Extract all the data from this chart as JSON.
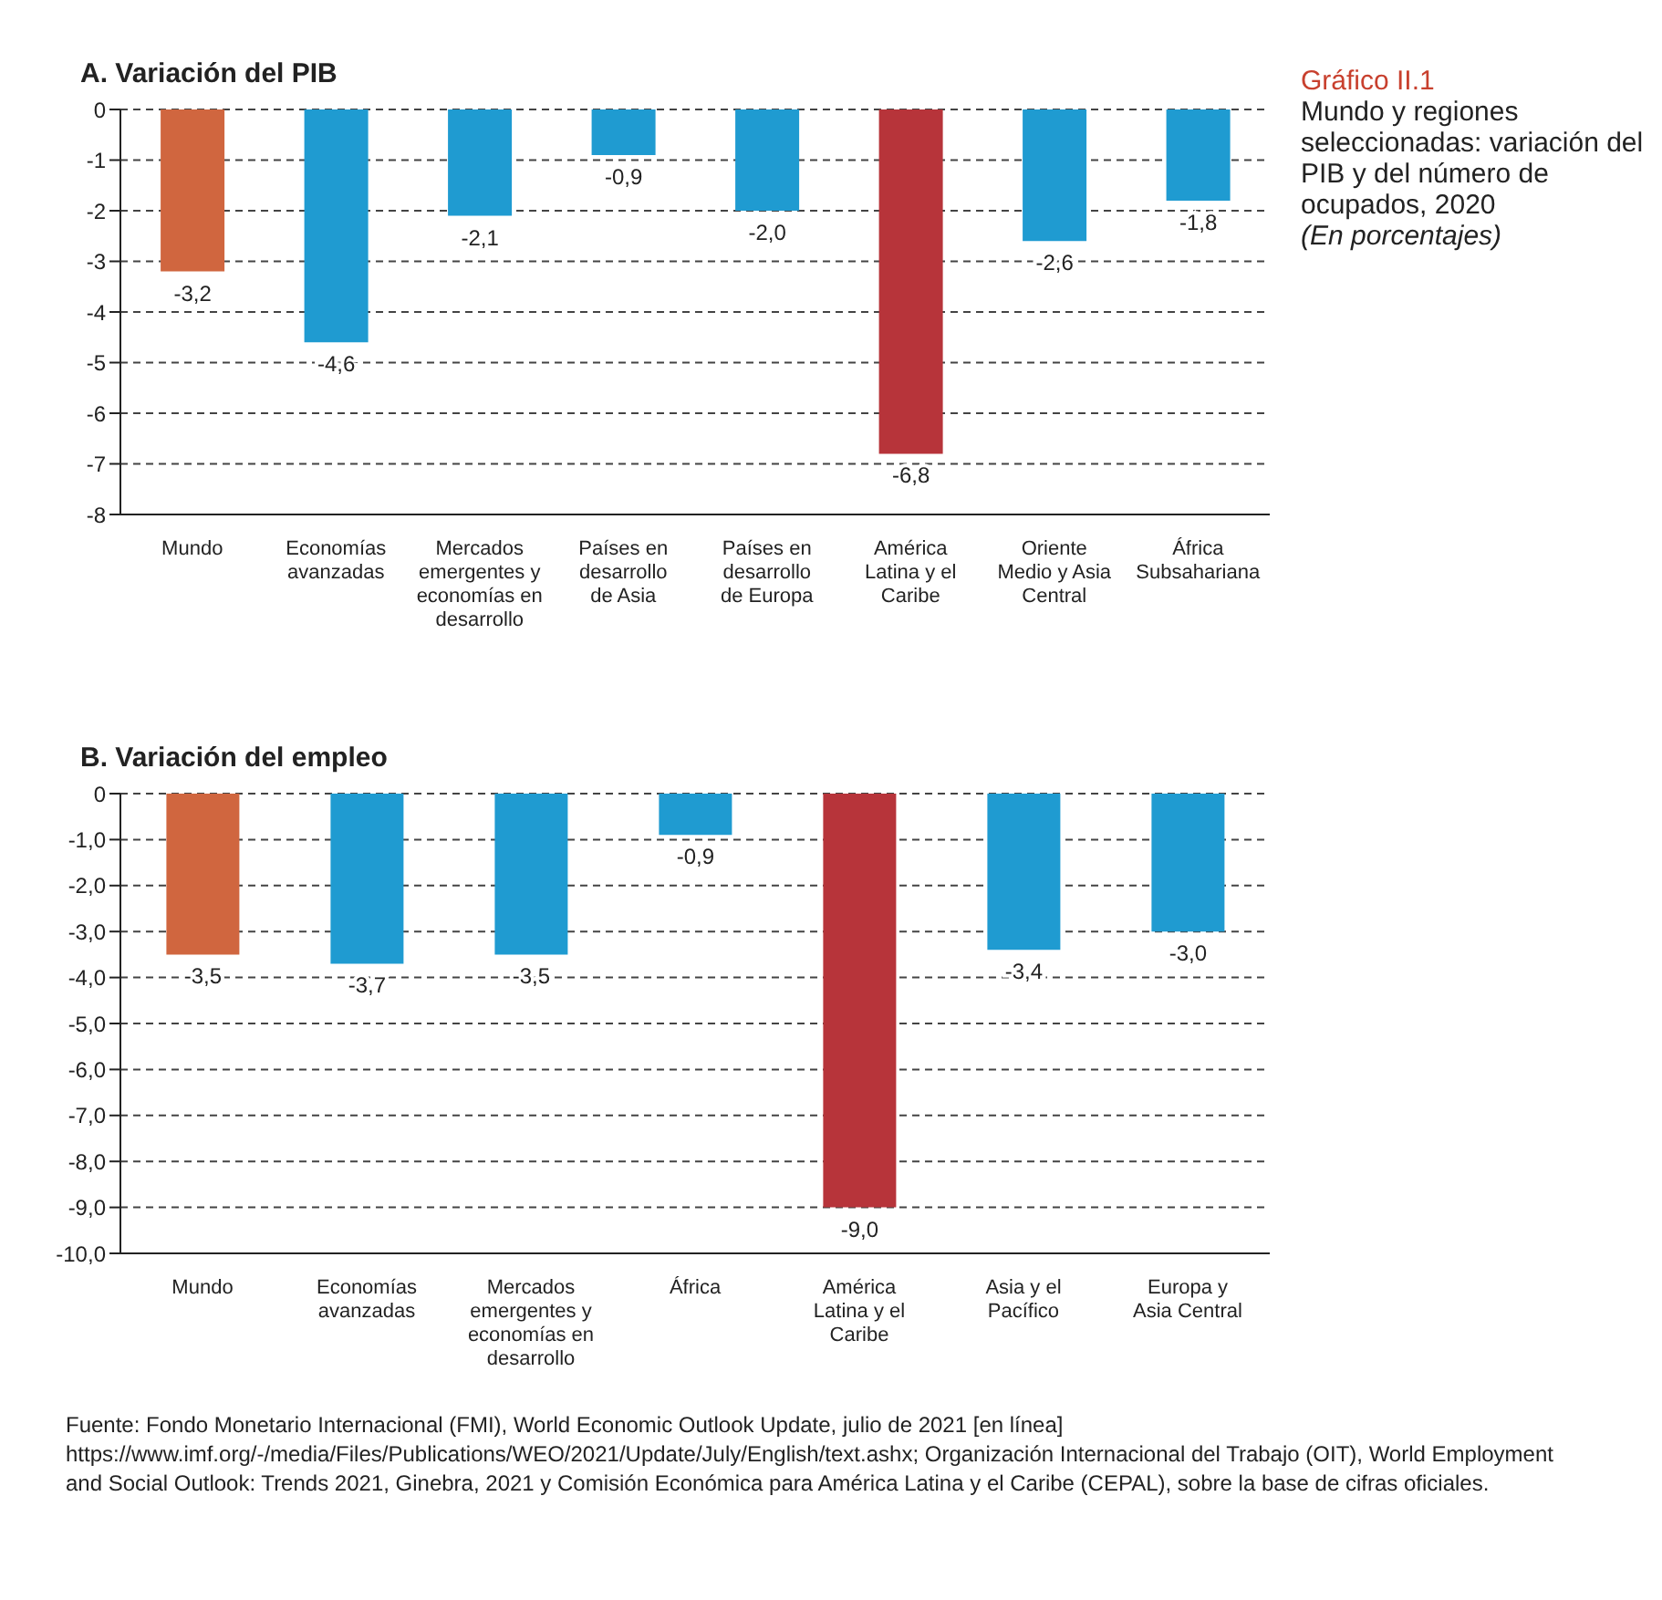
{
  "chart_data": [
    {
      "type": "other",
      "title": "Gráfico II.1",
      "subtitle": "Mundo y regiones seleccionadas: variación del PIB y del número de ocupados, 2020",
      "annotations": [
        "(En porcentajes)"
      ]
    },
    {
      "type": "bar",
      "title": "A. Variación del PIB",
      "categories": [
        "Mundo",
        "Economías avanzadas",
        "Mercados emergentes y economías en desarrollo",
        "Países en desarrollo de Asia",
        "Países en desarrollo de Europa",
        "América Latina y el Caribe",
        "Oriente Medio y Asia Central",
        "África Subsahariana"
      ],
      "values": [
        -3.2,
        -4.6,
        -2.1,
        -0.9,
        -2.0,
        -6.8,
        -2.6,
        -1.8
      ],
      "colors": [
        "#d0663f",
        "#1f9bd1",
        "#1f9bd1",
        "#1f9bd1",
        "#1f9bd1",
        "#b7343a",
        "#1f9bd1",
        "#1f9bd1"
      ],
      "value_labels": [
        "-3,2",
        "-4,6",
        "-2,1",
        "-0,9",
        "-2,0",
        "-6,8",
        "-2,6",
        "-1,8"
      ],
      "ylim": [
        -8,
        0
      ],
      "yticks": [
        -8,
        -7,
        -6,
        -5,
        -4,
        -3,
        -2,
        -1,
        0
      ],
      "grid": "y"
    },
    {
      "type": "bar",
      "title": "B. Variación del empleo",
      "categories": [
        "Mundo",
        "Economías avanzadas",
        "Mercados emergentes y economías en desarrollo",
        "África",
        "América Latina y el Caribe",
        "Asia y el Pacífico",
        "Europa y Asia Central"
      ],
      "values": [
        -3.5,
        -3.7,
        -3.5,
        -0.9,
        -9.0,
        -3.4,
        -3.0
      ],
      "colors": [
        "#d0663f",
        "#1f9bd1",
        "#1f9bd1",
        "#1f9bd1",
        "#b7343a",
        "#1f9bd1",
        "#1f9bd1"
      ],
      "value_labels": [
        "-3,5",
        "-3,7",
        "-3,5",
        "-0,9",
        "-9,0",
        "-3,4",
        "-3,0"
      ],
      "ylim": [
        -10,
        0
      ],
      "yticks": [
        {
          "value": -10,
          "label": "-10,0"
        },
        {
          "value": -9,
          "label": "-9,0"
        },
        {
          "value": -8,
          "label": "-8,0"
        },
        {
          "value": -7,
          "label": "-7,0"
        },
        {
          "value": -6,
          "label": "-6,0"
        },
        {
          "value": -5,
          "label": "-5,0"
        },
        {
          "value": -4,
          "label": "-4,0"
        },
        {
          "value": -3,
          "label": "-3,0"
        },
        {
          "value": -2,
          "label": "-2,0"
        },
        {
          "value": -1,
          "label": "-1,0"
        },
        0
      ],
      "grid": "y",
      "annotations": [
        "Fuente: Fondo Monetario Internacional (FMI), World Economic Outlook Update, julio de 2021 [en línea] https://www.imf.org/-/media/Files/Publications/WEO/2021/Update/July/English/text.ashx; Organización Internacional del Trabajo (OIT), World Employment and Social Outlook: Trends 2021, Ginebra, 2021 y Comisión Económica para América Latina y el Caribe (CEPAL), sobre la base de cifras oficiales."
      ]
    }
  ]
}
